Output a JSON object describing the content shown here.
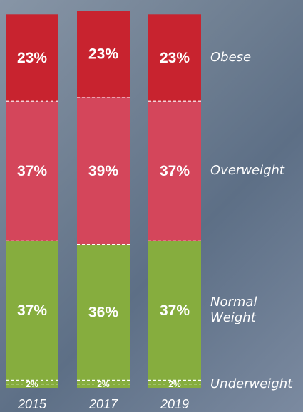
{
  "chart_data": {
    "type": "stacked_bar",
    "categories": [
      "2015",
      "2017",
      "2019"
    ],
    "ylim": [
      0,
      100
    ],
    "series": [
      {
        "name": "Underweight",
        "color": "#86ad3e",
        "values": [
          2,
          2,
          2
        ],
        "value_labels": [
          "2%",
          "2%",
          "2%"
        ]
      },
      {
        "name": "Normal Weight",
        "color": "#86ad3e",
        "values": [
          37,
          36,
          37
        ],
        "value_labels": [
          "37%",
          "36%",
          "37%"
        ]
      },
      {
        "name": "Overweight",
        "color": "#d4465b",
        "values": [
          37,
          39,
          37
        ],
        "value_labels": [
          "37%",
          "39%",
          "37%"
        ]
      },
      {
        "name": "Obese",
        "color": "#c8232f",
        "values": [
          23,
          23,
          23
        ],
        "value_labels": [
          "23%",
          "23%",
          "23%"
        ]
      }
    ]
  }
}
